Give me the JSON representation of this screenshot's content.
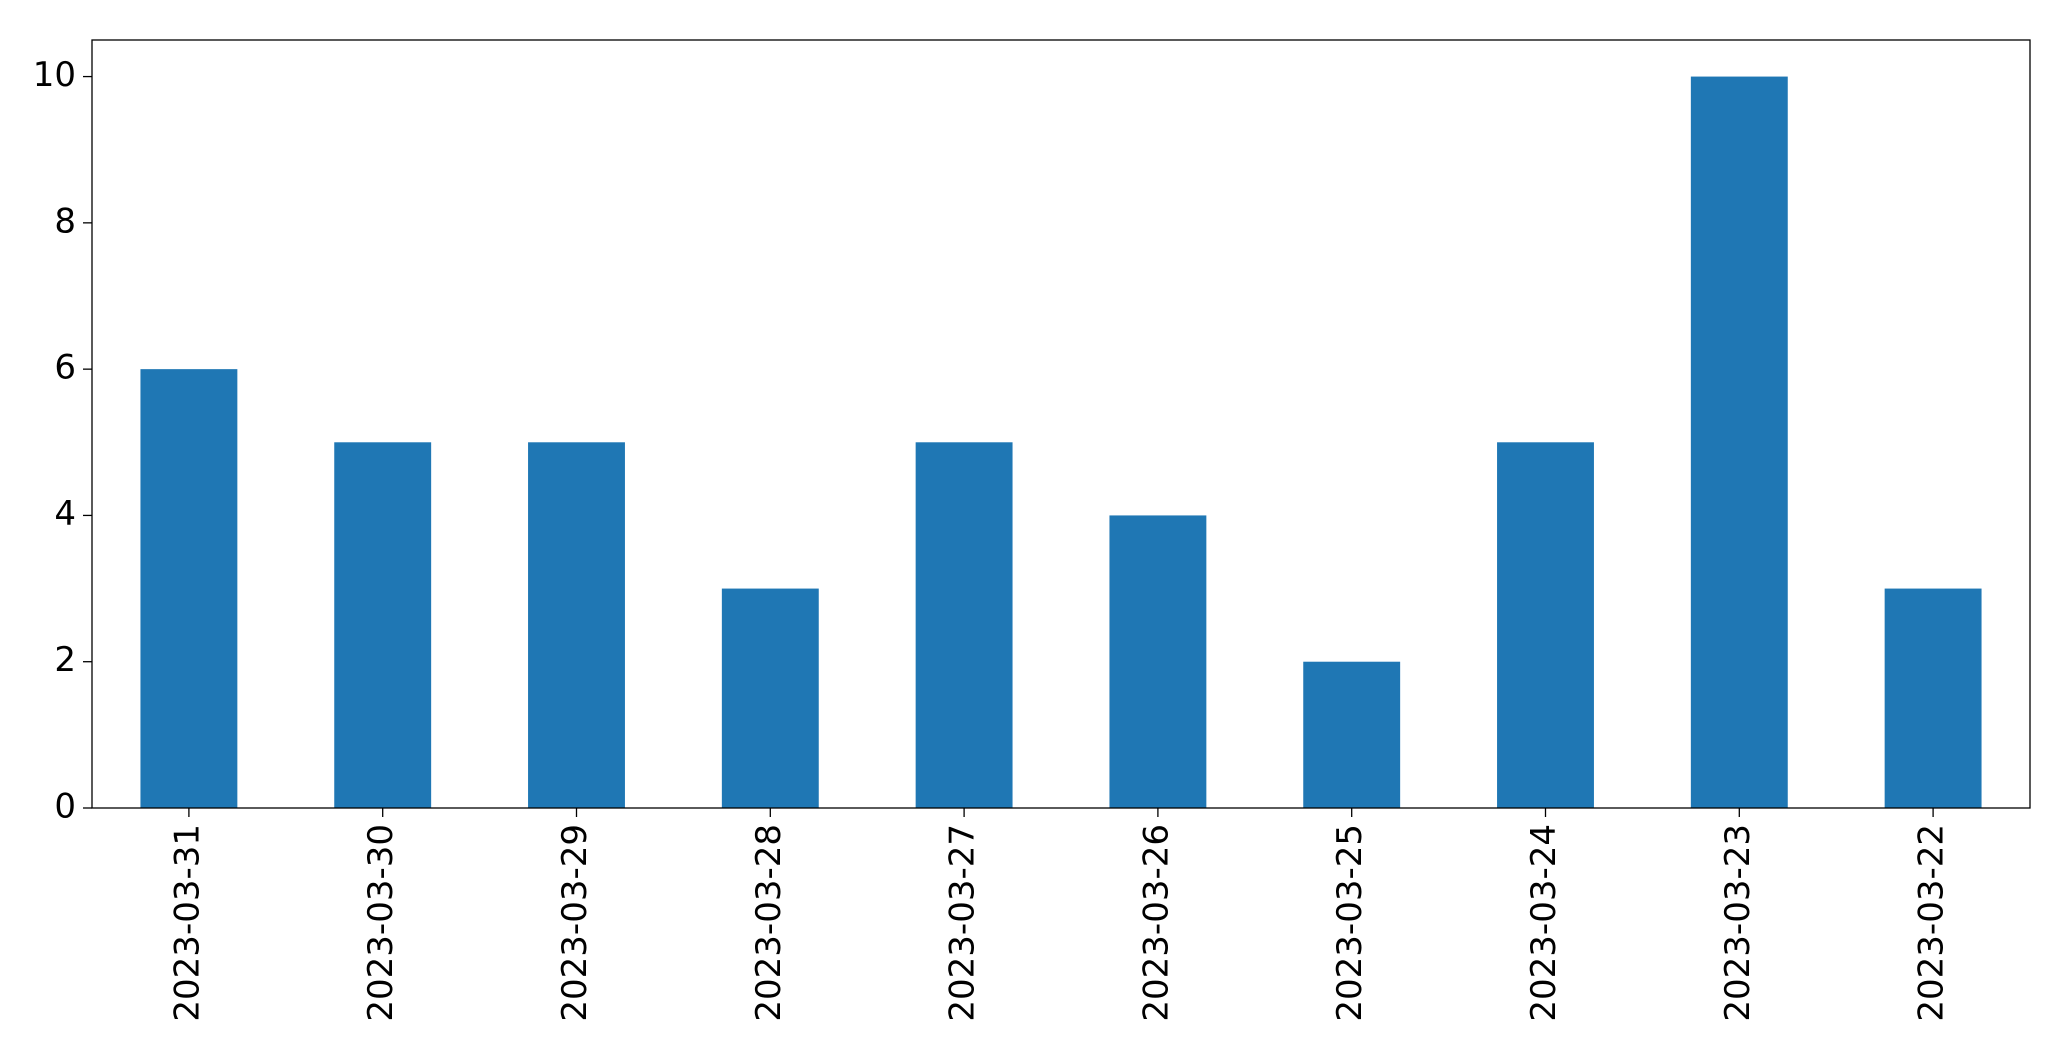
{
  "chart_data": {
    "type": "bar",
    "categories": [
      "2023-03-31",
      "2023-03-30",
      "2023-03-29",
      "2023-03-28",
      "2023-03-27",
      "2023-03-26",
      "2023-03-25",
      "2023-03-24",
      "2023-03-23",
      "2023-03-22"
    ],
    "values": [
      6,
      5,
      5,
      3,
      5,
      4,
      2,
      5,
      10,
      3
    ],
    "color": "#1f77b4",
    "ylim": [
      0,
      10.5
    ],
    "yticks": [
      0,
      2,
      4,
      6,
      8,
      10
    ],
    "grid": false
  }
}
